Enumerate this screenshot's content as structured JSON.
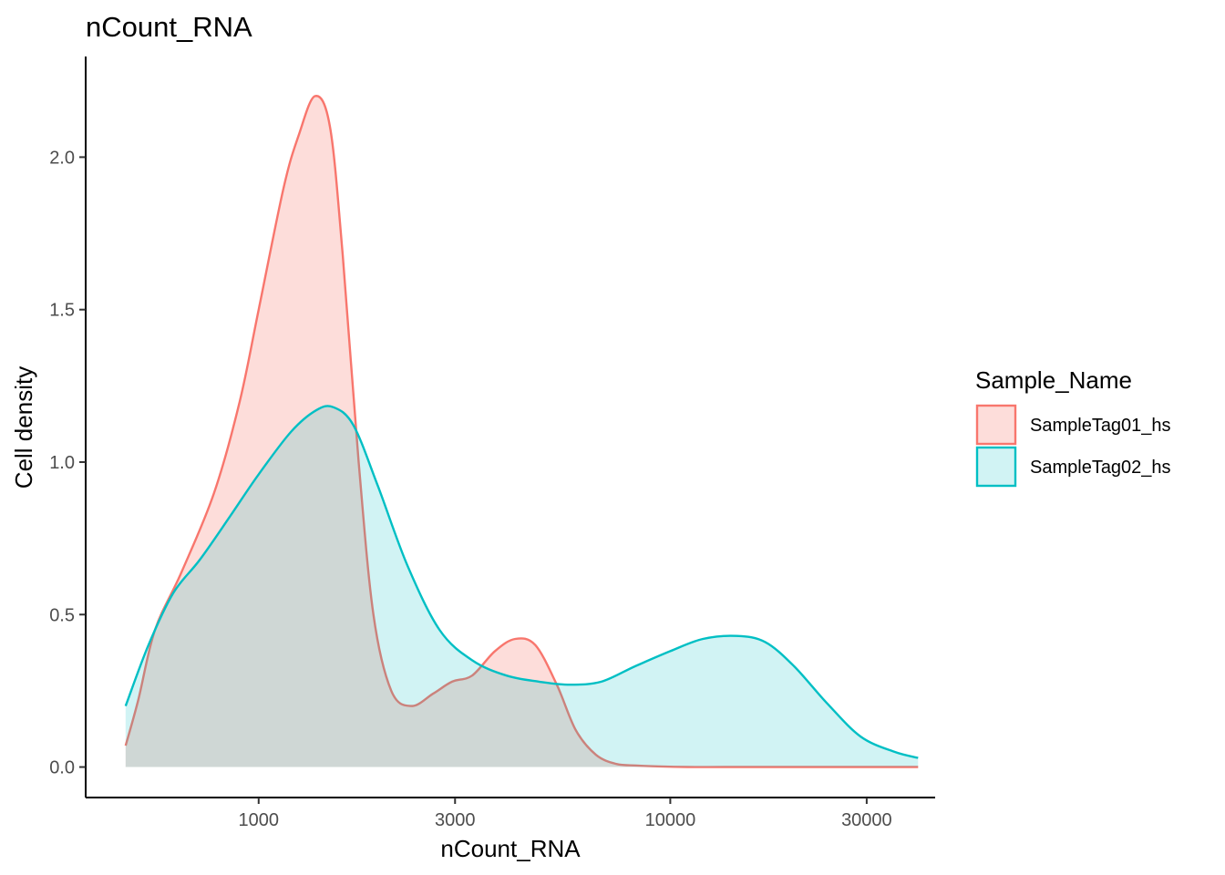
{
  "chart_data": {
    "type": "area",
    "title": "nCount_RNA",
    "xlabel": "nCount_RNA",
    "ylabel": "Cell density",
    "x_scale": "log10",
    "xlim": [
      380,
      44000
    ],
    "ylim": [
      -0.1,
      2.33
    ],
    "x_ticks": [
      1000,
      3000,
      10000,
      30000
    ],
    "x_tick_labels": [
      "1000",
      "3000",
      "10000",
      "30000"
    ],
    "y_ticks": [
      0.0,
      0.5,
      1.0,
      1.5,
      2.0
    ],
    "y_tick_labels": [
      "0.0",
      "0.5",
      "1.0",
      "1.5",
      "2.0"
    ],
    "grid": false,
    "legend": {
      "title": "Sample_Name",
      "position": "right"
    },
    "series": [
      {
        "name": "SampleTag01_hs",
        "color": "#F8766D",
        "fill": "#F8766D",
        "fill_opacity": 0.25,
        "x": [
          475,
          510,
          560,
          650,
          780,
          900,
          1000,
          1150,
          1250,
          1370,
          1490,
          1600,
          1750,
          1900,
          2100,
          2350,
          2650,
          2950,
          3300,
          3750,
          4200,
          4700,
          5300,
          5900,
          6600,
          7400,
          8300,
          9500,
          11000,
          13500,
          20000,
          30000,
          40000
        ],
        "y": [
          0.07,
          0.22,
          0.45,
          0.64,
          0.9,
          1.2,
          1.5,
          1.9,
          2.07,
          2.2,
          2.1,
          1.68,
          1.0,
          0.5,
          0.25,
          0.2,
          0.24,
          0.28,
          0.3,
          0.38,
          0.42,
          0.4,
          0.27,
          0.12,
          0.04,
          0.01,
          0.005,
          0.002,
          0.0,
          0.0,
          0.0,
          0.0,
          0.0
        ]
      },
      {
        "name": "SampleTag02_hs",
        "color": "#00BFC4",
        "fill": "#00BFC4",
        "fill_opacity": 0.18,
        "x": [
          475,
          540,
          620,
          720,
          850,
          1000,
          1200,
          1380,
          1520,
          1700,
          1950,
          2300,
          2750,
          3300,
          4000,
          4800,
          5700,
          6800,
          8200,
          10000,
          12000,
          14500,
          17000,
          20000,
          24000,
          29000,
          35000,
          40000
        ],
        "y": [
          0.2,
          0.4,
          0.57,
          0.68,
          0.82,
          0.96,
          1.1,
          1.17,
          1.18,
          1.12,
          0.92,
          0.66,
          0.45,
          0.35,
          0.3,
          0.28,
          0.27,
          0.28,
          0.33,
          0.38,
          0.42,
          0.43,
          0.41,
          0.33,
          0.21,
          0.1,
          0.05,
          0.03
        ]
      }
    ]
  }
}
